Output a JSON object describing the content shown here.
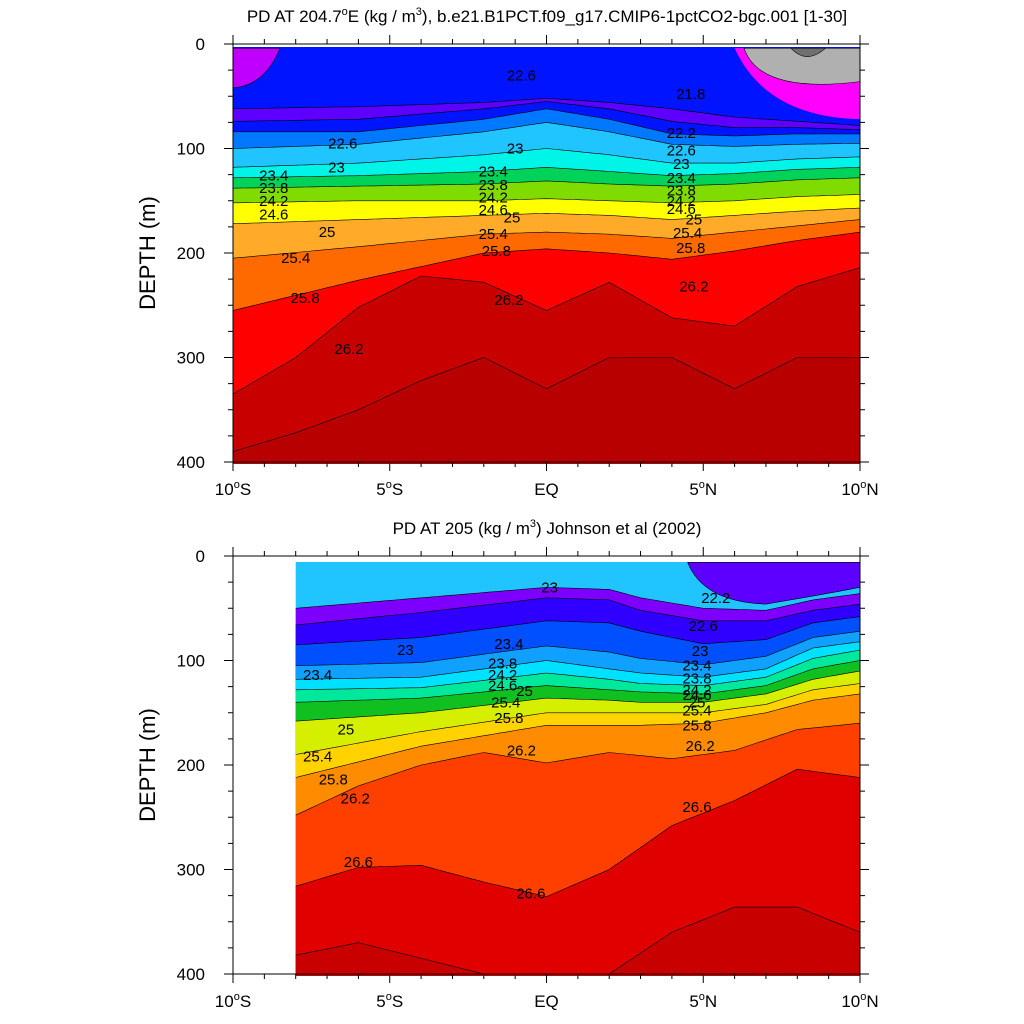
{
  "chart_data": [
    {
      "type": "contour",
      "title_prefix": "PD AT 204.7",
      "title_sup_deg": "o",
      "title_mid": "E (kg / m",
      "title_sup3": "3",
      "title_suffix": "), b.e21.B1PCT.f09_g17.CMIP6-1pctCO2-bgc.001 [1-30]",
      "ylabel": "DEPTH (m)",
      "xlim": [
        -10,
        10
      ],
      "ylim": [
        0,
        400
      ],
      "y_ticks": [
        "0",
        "100",
        "200",
        "300",
        "400"
      ],
      "x_ticks": [
        {
          "num": "10",
          "sup": "o",
          "hemi": "S"
        },
        {
          "num": "5",
          "sup": "o",
          "hemi": "S"
        },
        {
          "num": "EQ",
          "sup": "",
          "hemi": ""
        },
        {
          "num": "5",
          "sup": "o",
          "hemi": "N"
        },
        {
          "num": "10",
          "sup": "o",
          "hemi": "N"
        }
      ],
      "data_range_lat": [
        -10,
        10
      ],
      "levels": [
        21.4,
        21.6,
        21.8,
        22.0,
        22.2,
        22.4,
        22.6,
        22.8,
        23.0,
        23.2,
        23.4,
        23.6,
        23.8,
        24.0,
        24.2,
        24.4,
        24.6,
        24.8,
        25.0,
        25.2,
        25.4,
        25.6,
        25.8,
        26.0,
        26.2,
        26.4
      ],
      "contours": [
        {
          "level": "21.8",
          "lat": [
            -10,
            -6,
            -2,
            0,
            2,
            4,
            6,
            8,
            10
          ],
          "depth": [
            62,
            60,
            56,
            52,
            56,
            62,
            70,
            74,
            78
          ]
        },
        {
          "level": "22.2",
          "lat": [
            -10,
            -6,
            -2,
            0,
            2,
            4,
            6,
            8,
            10
          ],
          "depth": [
            74,
            72,
            62,
            55,
            62,
            74,
            80,
            80,
            82
          ]
        },
        {
          "level": "22.6",
          "lat": [
            -10,
            -6,
            -2,
            0,
            2,
            4,
            6,
            8,
            10
          ],
          "depth": [
            84,
            84,
            72,
            62,
            72,
            86,
            88,
            86,
            86
          ]
        },
        {
          "level": "23",
          "lat": [
            -10,
            -6,
            -2,
            0,
            2,
            4,
            6,
            8,
            10
          ],
          "depth": [
            100,
            96,
            84,
            75,
            84,
            96,
            98,
            96,
            95
          ]
        },
        {
          "level": "23.4",
          "lat": [
            -10,
            -6,
            -2,
            0,
            2,
            4,
            6,
            8,
            10
          ],
          "depth": [
            118,
            114,
            106,
            100,
            106,
            114,
            114,
            110,
            108
          ]
        },
        {
          "level": "23.8",
          "lat": [
            -10,
            -6,
            -2,
            0,
            2,
            4,
            6,
            8,
            10
          ],
          "depth": [
            128,
            126,
            122,
            118,
            122,
            126,
            124,
            120,
            118
          ]
        },
        {
          "level": "24.2",
          "lat": [
            -10,
            -6,
            -2,
            0,
            2,
            4,
            6,
            8,
            10
          ],
          "depth": [
            138,
            136,
            134,
            131,
            134,
            136,
            134,
            130,
            128
          ]
        },
        {
          "level": "24.6",
          "lat": [
            -10,
            -6,
            -2,
            0,
            2,
            4,
            6,
            8,
            10
          ],
          "depth": [
            152,
            150,
            150,
            148,
            150,
            152,
            150,
            146,
            144
          ]
        },
        {
          "level": "25",
          "lat": [
            -10,
            -6,
            -2,
            0,
            2,
            4,
            6,
            8,
            10
          ],
          "depth": [
            172,
            168,
            164,
            162,
            164,
            168,
            164,
            160,
            157
          ]
        },
        {
          "level": "25.4",
          "lat": [
            -10,
            -6,
            -2,
            0,
            2,
            4,
            6,
            8,
            10
          ],
          "depth": [
            205,
            194,
            182,
            180,
            182,
            186,
            180,
            174,
            168
          ]
        },
        {
          "level": "25.8",
          "lat": [
            -10,
            -6,
            -2,
            0,
            2,
            4,
            6,
            8,
            10
          ],
          "depth": [
            255,
            226,
            200,
            196,
            200,
            206,
            198,
            188,
            180
          ]
        },
        {
          "level": "26.2",
          "lat": [
            -10,
            -8,
            -6,
            -4,
            -2,
            0,
            2,
            4,
            6,
            8,
            10
          ],
          "depth": [
            335,
            300,
            252,
            222,
            228,
            255,
            228,
            262,
            270,
            232,
            214
          ]
        },
        {
          "level": "26.4",
          "lat": [
            -10,
            -8,
            -6,
            -4,
            -2,
            0,
            2,
            4,
            6,
            8,
            10
          ],
          "depth": [
            390,
            372,
            350,
            322,
            300,
            330,
            300,
            300,
            330,
            300,
            300
          ]
        }
      ],
      "labels": [
        {
          "text": "22.6",
          "lat": -0.8,
          "depth": 30
        },
        {
          "text": "21.8",
          "lat": 4.6,
          "depth": 48
        },
        {
          "text": "22.6",
          "lat": -6.5,
          "depth": 95
        },
        {
          "text": "23",
          "lat": -6.7,
          "depth": 118
        },
        {
          "text": "23",
          "lat": -1.0,
          "depth": 100
        },
        {
          "text": "22.2",
          "lat": 4.3,
          "depth": 85
        },
        {
          "text": "22.6",
          "lat": 4.3,
          "depth": 102
        },
        {
          "text": "23",
          "lat": 4.3,
          "depth": 115
        },
        {
          "text": "23.4",
          "lat": -8.7,
          "depth": 126
        },
        {
          "text": "23.8",
          "lat": -8.7,
          "depth": 138
        },
        {
          "text": "24.2",
          "lat": -8.7,
          "depth": 150
        },
        {
          "text": "24.6",
          "lat": -8.7,
          "depth": 163
        },
        {
          "text": "23.4",
          "lat": -1.7,
          "depth": 122
        },
        {
          "text": "23.8",
          "lat": -1.7,
          "depth": 135
        },
        {
          "text": "24.2",
          "lat": -1.7,
          "depth": 147
        },
        {
          "text": "24.6",
          "lat": -1.7,
          "depth": 159
        },
        {
          "text": "25",
          "lat": -1.1,
          "depth": 166
        },
        {
          "text": "23.4",
          "lat": 4.3,
          "depth": 128
        },
        {
          "text": "23.8",
          "lat": 4.3,
          "depth": 140
        },
        {
          "text": "24.2",
          "lat": 4.3,
          "depth": 150
        },
        {
          "text": "24.6",
          "lat": 4.3,
          "depth": 158
        },
        {
          "text": "25",
          "lat": 4.7,
          "depth": 168
        },
        {
          "text": "25",
          "lat": -7.0,
          "depth": 180
        },
        {
          "text": "25.4",
          "lat": -1.7,
          "depth": 182
        },
        {
          "text": "25.4",
          "lat": 4.5,
          "depth": 181
        },
        {
          "text": "25.4",
          "lat": -8.0,
          "depth": 205
        },
        {
          "text": "25.8",
          "lat": -1.6,
          "depth": 198
        },
        {
          "text": "25.8",
          "lat": 4.6,
          "depth": 195
        },
        {
          "text": "25.8",
          "lat": -7.7,
          "depth": 243
        },
        {
          "text": "26.2",
          "lat": -1.2,
          "depth": 245
        },
        {
          "text": "26.2",
          "lat": 4.7,
          "depth": 232
        },
        {
          "text": "26.2",
          "lat": -6.3,
          "depth": 292
        }
      ]
    },
    {
      "type": "contour",
      "title_prefix": "PD AT 205 (kg / m",
      "title_sup3": "3",
      "title_suffix": ") Johnson et al (2002)",
      "ylabel": "DEPTH (m)",
      "xlim": [
        -10,
        10
      ],
      "ylim": [
        0,
        400
      ],
      "y_ticks": [
        "0",
        "100",
        "200",
        "300",
        "400"
      ],
      "x_ticks": [
        {
          "num": "10",
          "sup": "o",
          "hemi": "S"
        },
        {
          "num": "5",
          "sup": "o",
          "hemi": "S"
        },
        {
          "num": "EQ",
          "sup": "",
          "hemi": ""
        },
        {
          "num": "5",
          "sup": "o",
          "hemi": "N"
        },
        {
          "num": "10",
          "sup": "o",
          "hemi": "N"
        }
      ],
      "data_range_lat": [
        -8,
        10
      ],
      "levels": [
        22.0,
        22.2,
        22.4,
        22.6,
        22.8,
        23.0,
        23.2,
        23.4,
        23.6,
        23.8,
        24.0,
        24.2,
        24.4,
        24.6,
        24.8,
        25.0,
        25.2,
        25.4,
        25.6,
        25.8,
        26.0,
        26.2,
        26.4,
        26.6,
        26.8
      ],
      "contours": [
        {
          "level": "22.2",
          "lat": [
            -8,
            -4,
            0,
            2,
            3,
            5,
            7,
            8.5,
            10
          ],
          "depth": [
            50,
            40,
            30,
            32,
            40,
            50,
            52,
            42,
            36
          ]
        },
        {
          "level": "22.6",
          "lat": [
            -8,
            -4,
            0,
            2,
            3,
            5,
            7,
            8.5,
            10
          ],
          "depth": [
            66,
            54,
            40,
            42,
            52,
            62,
            62,
            52,
            46
          ]
        },
        {
          "level": "23",
          "lat": [
            -8,
            -4,
            0,
            2,
            3,
            5,
            7,
            8.5,
            10
          ],
          "depth": [
            85,
            78,
            62,
            64,
            72,
            84,
            80,
            64,
            58
          ]
        },
        {
          "level": "23.4",
          "lat": [
            -8,
            -4,
            0,
            2,
            3,
            5,
            7,
            8.5,
            10
          ],
          "depth": [
            105,
            102,
            86,
            92,
            98,
            104,
            96,
            78,
            72
          ]
        },
        {
          "level": "23.8",
          "lat": [
            -8,
            -4,
            0,
            2,
            3,
            5,
            7,
            8.5,
            10
          ],
          "depth": [
            118,
            116,
            100,
            108,
            112,
            116,
            108,
            88,
            82
          ]
        },
        {
          "level": "24.2",
          "lat": [
            -8,
            -4,
            0,
            2,
            3,
            5,
            7,
            8.5,
            10
          ],
          "depth": [
            128,
            126,
            112,
            118,
            122,
            124,
            116,
            98,
            90
          ]
        },
        {
          "level": "24.6",
          "lat": [
            -8,
            -4,
            0,
            2,
            3,
            5,
            7,
            8.5,
            10
          ],
          "depth": [
            140,
            136,
            124,
            128,
            130,
            132,
            124,
            108,
            100
          ]
        },
        {
          "level": "25",
          "lat": [
            -8,
            -4,
            0,
            2,
            3,
            5,
            7,
            8.5,
            10
          ],
          "depth": [
            158,
            150,
            136,
            138,
            140,
            140,
            132,
            118,
            110
          ]
        },
        {
          "level": "25.4",
          "lat": [
            -8,
            -4,
            0,
            2,
            3,
            5,
            7,
            8.5,
            10
          ],
          "depth": [
            190,
            168,
            150,
            150,
            150,
            150,
            142,
            128,
            122
          ]
        },
        {
          "level": "25.8",
          "lat": [
            -8,
            -4,
            0,
            2,
            3,
            5,
            7,
            8.5,
            10
          ],
          "depth": [
            212,
            182,
            162,
            162,
            162,
            160,
            150,
            138,
            132
          ]
        },
        {
          "level": "26.2",
          "lat": [
            -8,
            -6,
            -4,
            -2,
            0,
            2,
            4,
            6,
            8,
            10
          ],
          "depth": [
            248,
            220,
            200,
            188,
            198,
            188,
            194,
            186,
            166,
            160
          ]
        },
        {
          "level": "26.6",
          "lat": [
            -8,
            -6,
            -4,
            -2,
            0,
            2,
            4,
            6,
            8,
            10
          ],
          "depth": [
            316,
            298,
            296,
            312,
            326,
            300,
            258,
            234,
            204,
            212
          ]
        },
        {
          "level": "26.8",
          "lat": [
            -8,
            -6,
            -4,
            -2,
            0,
            2,
            4,
            6,
            8,
            10
          ],
          "depth": [
            382,
            370,
            385,
            400,
            400,
            400,
            360,
            336,
            336,
            360
          ]
        }
      ],
      "labels": [
        {
          "text": "23",
          "lat": 0.1,
          "depth": 30
        },
        {
          "text": "22.2",
          "lat": 5.4,
          "depth": 40
        },
        {
          "text": "22.6",
          "lat": 5.0,
          "depth": 67
        },
        {
          "text": "23",
          "lat": -4.5,
          "depth": 90
        },
        {
          "text": "23.4",
          "lat": -1.2,
          "depth": 84
        },
        {
          "text": "23",
          "lat": 4.9,
          "depth": 91
        },
        {
          "text": "23.4",
          "lat": -7.3,
          "depth": 114
        },
        {
          "text": "23.8",
          "lat": -1.4,
          "depth": 103
        },
        {
          "text": "24.2",
          "lat": -1.4,
          "depth": 114
        },
        {
          "text": "24.6",
          "lat": -1.4,
          "depth": 124
        },
        {
          "text": "25",
          "lat": -0.7,
          "depth": 129
        },
        {
          "text": "25.4",
          "lat": -1.3,
          "depth": 140
        },
        {
          "text": "25.8",
          "lat": -1.2,
          "depth": 155
        },
        {
          "text": "23.4",
          "lat": 4.8,
          "depth": 105
        },
        {
          "text": "23.8",
          "lat": 4.8,
          "depth": 117
        },
        {
          "text": "24.2",
          "lat": 4.8,
          "depth": 128
        },
        {
          "text": "24.6",
          "lat": 4.8,
          "depth": 133
        },
        {
          "text": "25",
          "lat": 4.8,
          "depth": 140
        },
        {
          "text": "25.4",
          "lat": 4.8,
          "depth": 148
        },
        {
          "text": "25.8",
          "lat": 4.8,
          "depth": 162
        },
        {
          "text": "26.2",
          "lat": 4.9,
          "depth": 182
        },
        {
          "text": "25",
          "lat": -6.4,
          "depth": 166
        },
        {
          "text": "25.4",
          "lat": -7.3,
          "depth": 192
        },
        {
          "text": "25.8",
          "lat": -6.8,
          "depth": 214
        },
        {
          "text": "26.2",
          "lat": -6.1,
          "depth": 232
        },
        {
          "text": "26.2",
          "lat": -0.8,
          "depth": 186
        },
        {
          "text": "26.6",
          "lat": 4.8,
          "depth": 240
        },
        {
          "text": "26.6",
          "lat": -6.0,
          "depth": 293
        },
        {
          "text": "26.6",
          "lat": -0.5,
          "depth": 323
        }
      ]
    }
  ]
}
